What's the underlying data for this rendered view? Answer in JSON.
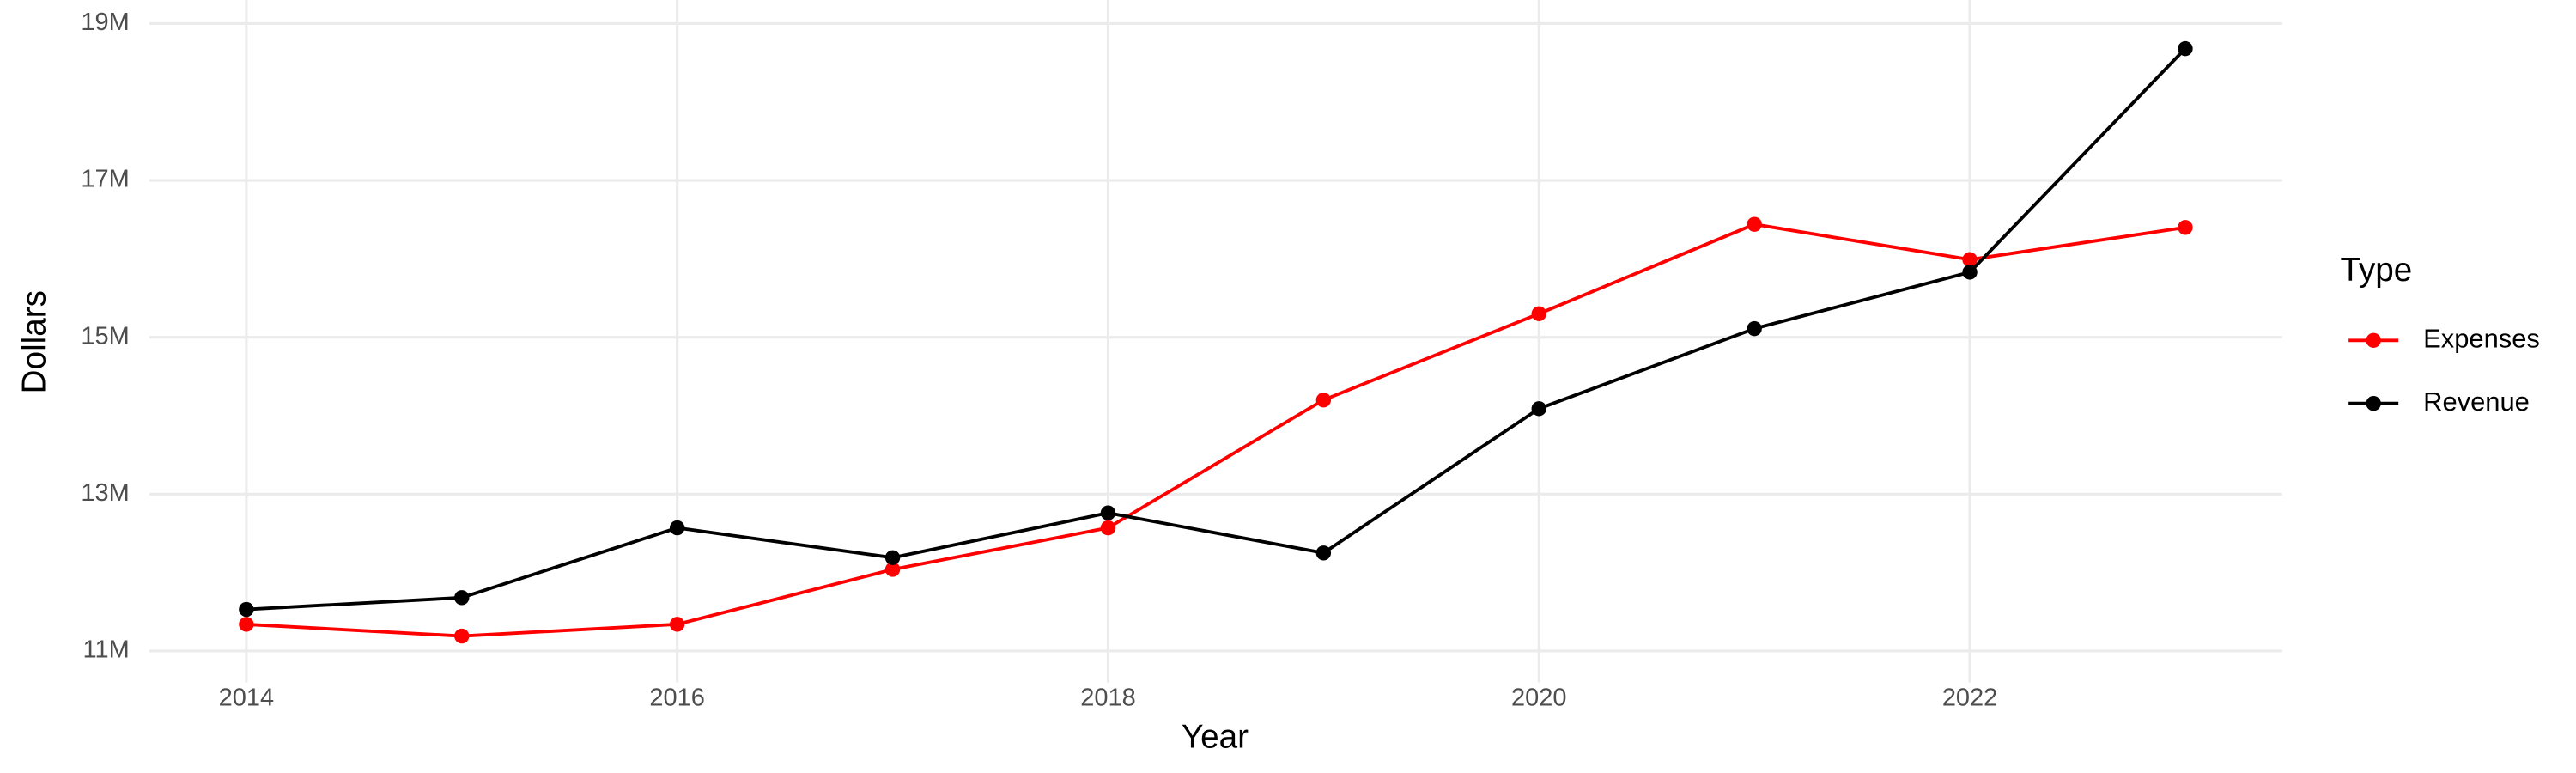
{
  "chart_data": {
    "type": "line",
    "x_label": "Year",
    "y_label": "Dollars",
    "legend_title": "Type",
    "x": [
      2014,
      2015,
      2016,
      2017,
      2018,
      2019,
      2020,
      2021,
      2022,
      2023
    ],
    "series": [
      {
        "name": "Expenses",
        "color": "#ff0000",
        "values": [
          11340000,
          11190000,
          11340000,
          12040000,
          12570000,
          14200000,
          15300000,
          16440000,
          15990000,
          16400000
        ]
      },
      {
        "name": "Revenue",
        "color": "#000000",
        "values": [
          11530000,
          11680000,
          12570000,
          12190000,
          12760000,
          12250000,
          14090000,
          15110000,
          15830000,
          18680000
        ]
      }
    ],
    "xlim": [
      2013.55,
      2023.45
    ],
    "xticks": [
      2014,
      2016,
      2018,
      2020,
      2022
    ],
    "ylim": [
      10600000,
      19300000
    ],
    "yticks": [
      {
        "value": 11000000,
        "label": "11M"
      },
      {
        "value": 13000000,
        "label": "13M"
      },
      {
        "value": 15000000,
        "label": "15M"
      },
      {
        "value": 17000000,
        "label": "17M"
      },
      {
        "value": 19000000,
        "label": "19M"
      }
    ],
    "grid": true,
    "legend": "right"
  }
}
